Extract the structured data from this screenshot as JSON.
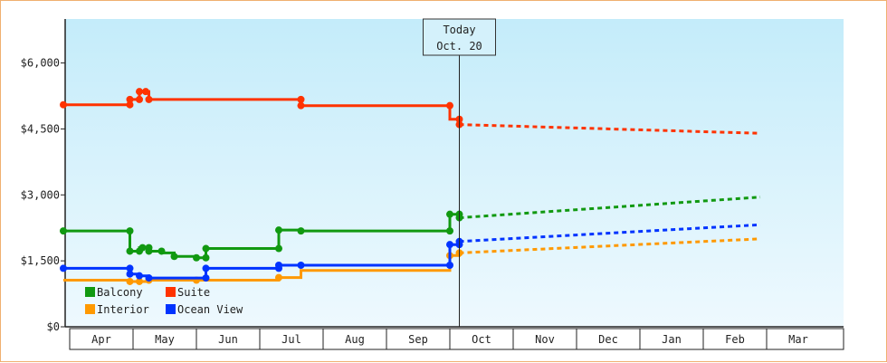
{
  "chart_data": {
    "type": "line",
    "y_tick_labels": [
      "$0",
      "$1,500",
      "$3,000",
      "$4,500",
      "$6,000"
    ],
    "y_ticks": [
      0,
      1500,
      3000,
      4500,
      6000
    ],
    "ylim": [
      0,
      7000
    ],
    "categories": [
      "Apr",
      "May",
      "Jun",
      "Jul",
      "Aug",
      "Sep",
      "Oct",
      "Nov",
      "Dec",
      "Jan",
      "Feb",
      "Mar"
    ],
    "today_marker": {
      "line1": "Today",
      "line2": "Oct. 20",
      "x": 6.15
    },
    "legend_placement": "bottom-left",
    "series": [
      {
        "name": "Balcony",
        "color": "#119911",
        "points": [
          [
            -0.1,
            2180
          ],
          [
            0.95,
            2180
          ],
          [
            0.95,
            1720
          ],
          [
            1.1,
            1720
          ],
          [
            1.1,
            1800
          ],
          [
            1.25,
            1800
          ],
          [
            1.25,
            1720
          ],
          [
            1.45,
            1720
          ],
          [
            1.45,
            1680
          ],
          [
            1.65,
            1680
          ],
          [
            1.65,
            1600
          ],
          [
            2.0,
            1600
          ],
          [
            2.0,
            1570
          ],
          [
            2.15,
            1570
          ],
          [
            2.15,
            1780
          ],
          [
            3.3,
            1780
          ],
          [
            3.3,
            2200
          ],
          [
            3.65,
            2200
          ],
          [
            3.65,
            2180
          ],
          [
            6.0,
            2180
          ],
          [
            6.0,
            2560
          ],
          [
            6.15,
            2560
          ],
          [
            6.15,
            2480
          ]
        ],
        "markers": [
          [
            -0.1,
            2180
          ],
          [
            0.95,
            2180
          ],
          [
            0.95,
            1720
          ],
          [
            1.1,
            1720
          ],
          [
            1.15,
            1800
          ],
          [
            1.25,
            1800
          ],
          [
            1.25,
            1720
          ],
          [
            1.45,
            1720
          ],
          [
            1.65,
            1600
          ],
          [
            2.0,
            1570
          ],
          [
            2.15,
            1570
          ],
          [
            2.15,
            1780
          ],
          [
            3.3,
            1780
          ],
          [
            3.3,
            2200
          ],
          [
            3.65,
            2180
          ],
          [
            6.0,
            2180
          ],
          [
            6.0,
            2560
          ],
          [
            6.15,
            2560
          ],
          [
            6.15,
            2480
          ]
        ],
        "forecast": [
          [
            6.15,
            2480
          ],
          [
            10.9,
            2950
          ]
        ]
      },
      {
        "name": "Suite",
        "color": "#ff3300",
        "points": [
          [
            -0.1,
            5050
          ],
          [
            0.95,
            5050
          ],
          [
            0.95,
            5170
          ],
          [
            1.1,
            5170
          ],
          [
            1.1,
            5350
          ],
          [
            1.25,
            5350
          ],
          [
            1.25,
            5170
          ],
          [
            3.65,
            5170
          ],
          [
            3.65,
            5030
          ],
          [
            6.0,
            5030
          ],
          [
            6.0,
            4720
          ],
          [
            6.15,
            4720
          ],
          [
            6.15,
            4600
          ]
        ],
        "markers": [
          [
            -0.1,
            5050
          ],
          [
            0.95,
            5050
          ],
          [
            0.95,
            5170
          ],
          [
            1.1,
            5170
          ],
          [
            1.1,
            5350
          ],
          [
            1.2,
            5350
          ],
          [
            1.25,
            5170
          ],
          [
            3.65,
            5170
          ],
          [
            3.65,
            5030
          ],
          [
            6.0,
            5030
          ],
          [
            6.15,
            4720
          ],
          [
            6.15,
            4600
          ]
        ],
        "forecast": [
          [
            6.15,
            4600
          ],
          [
            10.9,
            4400
          ]
        ]
      },
      {
        "name": "Interior",
        "color": "#ff9900",
        "points": [
          [
            -0.1,
            1060
          ],
          [
            0.95,
            1060
          ],
          [
            0.95,
            1030
          ],
          [
            1.25,
            1030
          ],
          [
            1.25,
            1060
          ],
          [
            3.3,
            1060
          ],
          [
            3.3,
            1120
          ],
          [
            3.65,
            1120
          ],
          [
            3.65,
            1280
          ],
          [
            6.0,
            1280
          ],
          [
            6.0,
            1620
          ],
          [
            6.15,
            1620
          ],
          [
            6.15,
            1680
          ]
        ],
        "markers": [
          [
            0.95,
            1030
          ],
          [
            1.1,
            1030
          ],
          [
            1.25,
            1060
          ],
          [
            2.0,
            1060
          ],
          [
            3.3,
            1120
          ],
          [
            6.0,
            1620
          ],
          [
            6.15,
            1680
          ]
        ],
        "forecast": [
          [
            6.15,
            1680
          ],
          [
            10.9,
            2000
          ]
        ]
      },
      {
        "name": "Ocean View",
        "color": "#0033ff",
        "points": [
          [
            -0.1,
            1330
          ],
          [
            0.95,
            1330
          ],
          [
            0.95,
            1200
          ],
          [
            1.1,
            1200
          ],
          [
            1.1,
            1160
          ],
          [
            1.25,
            1160
          ],
          [
            1.25,
            1110
          ],
          [
            2.15,
            1110
          ],
          [
            2.15,
            1330
          ],
          [
            3.3,
            1330
          ],
          [
            3.3,
            1400
          ],
          [
            6.0,
            1400
          ],
          [
            6.0,
            1870
          ],
          [
            6.15,
            1870
          ],
          [
            6.15,
            1940
          ]
        ],
        "markers": [
          [
            -0.1,
            1330
          ],
          [
            0.95,
            1330
          ],
          [
            0.95,
            1200
          ],
          [
            1.1,
            1160
          ],
          [
            1.25,
            1110
          ],
          [
            2.15,
            1110
          ],
          [
            2.15,
            1330
          ],
          [
            3.3,
            1330
          ],
          [
            3.3,
            1400
          ],
          [
            3.65,
            1400
          ],
          [
            6.0,
            1400
          ],
          [
            6.0,
            1870
          ],
          [
            6.15,
            1870
          ],
          [
            6.15,
            1940
          ]
        ],
        "forecast": [
          [
            6.15,
            1940
          ],
          [
            10.9,
            2320
          ]
        ]
      }
    ]
  }
}
